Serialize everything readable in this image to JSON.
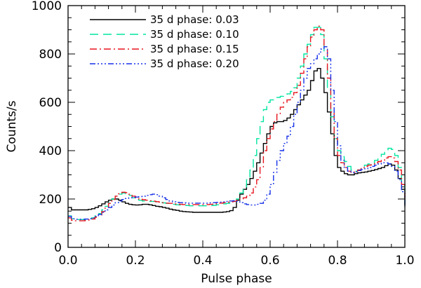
{
  "chart_data": {
    "type": "line",
    "title": "",
    "xlabel": "Pulse phase",
    "ylabel": "Counts/s",
    "xlim": [
      0.0,
      1.0
    ],
    "ylim": [
      0,
      1000
    ],
    "x_ticks": [
      "0.0",
      "0.2",
      "0.4",
      "0.6",
      "0.8",
      "1.0"
    ],
    "y_ticks": [
      "0",
      "200",
      "400",
      "600",
      "800",
      "1000"
    ],
    "legend_position": "top-left",
    "step": true,
    "series": [
      {
        "name": "35 d phase: 0.03",
        "color": "#000000",
        "dash": "solid",
        "x": [
          0.0,
          0.01,
          0.02,
          0.03,
          0.04,
          0.05,
          0.06,
          0.07,
          0.08,
          0.09,
          0.1,
          0.11,
          0.12,
          0.13,
          0.14,
          0.15,
          0.16,
          0.17,
          0.18,
          0.19,
          0.2,
          0.21,
          0.22,
          0.23,
          0.24,
          0.25,
          0.26,
          0.27,
          0.28,
          0.29,
          0.3,
          0.31,
          0.32,
          0.33,
          0.34,
          0.35,
          0.36,
          0.37,
          0.38,
          0.39,
          0.4,
          0.41,
          0.42,
          0.43,
          0.44,
          0.45,
          0.46,
          0.47,
          0.48,
          0.49,
          0.5,
          0.51,
          0.52,
          0.53,
          0.54,
          0.55,
          0.56,
          0.57,
          0.58,
          0.59,
          0.6,
          0.61,
          0.62,
          0.63,
          0.64,
          0.65,
          0.66,
          0.67,
          0.68,
          0.69,
          0.7,
          0.71,
          0.72,
          0.73,
          0.74,
          0.75,
          0.76,
          0.77,
          0.78,
          0.79,
          0.8,
          0.81,
          0.82,
          0.83,
          0.84,
          0.85,
          0.86,
          0.87,
          0.88,
          0.89,
          0.9,
          0.91,
          0.92,
          0.93,
          0.94,
          0.95,
          0.96,
          0.97,
          0.98,
          0.99,
          1.0
        ],
        "y": [
          165,
          155,
          155,
          155,
          155,
          155,
          157,
          160,
          165,
          172,
          180,
          188,
          195,
          200,
          200,
          195,
          188,
          182,
          178,
          176,
          175,
          176,
          178,
          178,
          176,
          173,
          170,
          168,
          165,
          162,
          158,
          155,
          153,
          150,
          148,
          147,
          146,
          145,
          145,
          145,
          145,
          145,
          145,
          145,
          145,
          145,
          146,
          148,
          152,
          165,
          195,
          220,
          240,
          260,
          285,
          315,
          350,
          390,
          430,
          470,
          500,
          515,
          520,
          520,
          525,
          535,
          550,
          570,
          590,
          610,
          630,
          650,
          690,
          730,
          740,
          700,
          640,
          560,
          470,
          380,
          330,
          315,
          305,
          300,
          300,
          305,
          308,
          310,
          312,
          315,
          318,
          322,
          326,
          330,
          338,
          345,
          340,
          320,
          285,
          240,
          170
        ]
      },
      {
        "name": "35 d phase: 0.10",
        "color": "#00e5a0",
        "dash": "12,7",
        "x": [
          0.0,
          0.01,
          0.02,
          0.03,
          0.04,
          0.05,
          0.06,
          0.07,
          0.08,
          0.09,
          0.1,
          0.11,
          0.12,
          0.13,
          0.14,
          0.15,
          0.16,
          0.17,
          0.18,
          0.19,
          0.2,
          0.21,
          0.22,
          0.23,
          0.24,
          0.25,
          0.26,
          0.27,
          0.28,
          0.29,
          0.3,
          0.31,
          0.32,
          0.33,
          0.34,
          0.35,
          0.36,
          0.37,
          0.38,
          0.39,
          0.4,
          0.41,
          0.42,
          0.43,
          0.44,
          0.45,
          0.46,
          0.47,
          0.48,
          0.49,
          0.5,
          0.51,
          0.52,
          0.53,
          0.54,
          0.55,
          0.56,
          0.57,
          0.58,
          0.59,
          0.6,
          0.61,
          0.62,
          0.63,
          0.64,
          0.65,
          0.66,
          0.67,
          0.68,
          0.69,
          0.7,
          0.71,
          0.72,
          0.73,
          0.74,
          0.75,
          0.76,
          0.77,
          0.78,
          0.79,
          0.8,
          0.81,
          0.82,
          0.83,
          0.84,
          0.85,
          0.86,
          0.87,
          0.88,
          0.89,
          0.9,
          0.91,
          0.92,
          0.93,
          0.94,
          0.95,
          0.96,
          0.97,
          0.98,
          0.99,
          1.0
        ],
        "y": [
          130,
          118,
          115,
          115,
          115,
          116,
          118,
          122,
          130,
          140,
          155,
          170,
          185,
          200,
          212,
          220,
          225,
          222,
          215,
          205,
          198,
          195,
          192,
          190,
          190,
          190,
          188,
          186,
          184,
          182,
          180,
          178,
          176,
          175,
          174,
          173,
          172,
          172,
          172,
          172,
          172,
          172,
          173,
          174,
          176,
          178,
          180,
          182,
          185,
          190,
          200,
          225,
          250,
          280,
          320,
          380,
          450,
          520,
          570,
          600,
          610,
          615,
          620,
          625,
          630,
          635,
          645,
          660,
          700,
          750,
          800,
          840,
          880,
          910,
          910,
          880,
          780,
          650,
          540,
          450,
          400,
          375,
          355,
          335,
          320,
          315,
          320,
          330,
          340,
          345,
          350,
          360,
          370,
          385,
          400,
          410,
          405,
          380,
          330,
          260,
          170
        ]
      },
      {
        "name": "35 d phase: 0.15",
        "color": "#e8141e",
        "dash": "10,4,2,4",
        "x": [
          0.0,
          0.01,
          0.02,
          0.03,
          0.04,
          0.05,
          0.06,
          0.07,
          0.08,
          0.09,
          0.1,
          0.11,
          0.12,
          0.13,
          0.14,
          0.15,
          0.16,
          0.17,
          0.18,
          0.19,
          0.2,
          0.21,
          0.22,
          0.23,
          0.24,
          0.25,
          0.26,
          0.27,
          0.28,
          0.29,
          0.3,
          0.31,
          0.32,
          0.33,
          0.34,
          0.35,
          0.36,
          0.37,
          0.38,
          0.39,
          0.4,
          0.41,
          0.42,
          0.43,
          0.44,
          0.45,
          0.46,
          0.47,
          0.48,
          0.49,
          0.5,
          0.51,
          0.52,
          0.53,
          0.54,
          0.55,
          0.56,
          0.57,
          0.58,
          0.59,
          0.6,
          0.61,
          0.62,
          0.63,
          0.64,
          0.65,
          0.66,
          0.67,
          0.68,
          0.69,
          0.7,
          0.71,
          0.72,
          0.73,
          0.74,
          0.75,
          0.76,
          0.77,
          0.78,
          0.79,
          0.8,
          0.81,
          0.82,
          0.83,
          0.84,
          0.85,
          0.86,
          0.87,
          0.88,
          0.89,
          0.9,
          0.91,
          0.92,
          0.93,
          0.94,
          0.95,
          0.96,
          0.97,
          0.98,
          0.99,
          1.0
        ],
        "y": [
          122,
          112,
          110,
          110,
          110,
          111,
          113,
          117,
          124,
          134,
          148,
          165,
          182,
          198,
          212,
          222,
          228,
          226,
          220,
          212,
          205,
          200,
          197,
          195,
          193,
          191,
          189,
          187,
          185,
          183,
          182,
          180,
          179,
          178,
          177,
          177,
          177,
          177,
          177,
          177,
          177,
          177,
          178,
          179,
          181,
          183,
          185,
          187,
          188,
          190,
          195,
          200,
          205,
          212,
          225,
          250,
          280,
          330,
          400,
          450,
          490,
          520,
          550,
          580,
          600,
          610,
          620,
          640,
          670,
          720,
          780,
          830,
          870,
          900,
          915,
          900,
          830,
          700,
          560,
          450,
          380,
          350,
          330,
          315,
          310,
          312,
          320,
          330,
          335,
          340,
          345,
          350,
          355,
          360,
          370,
          375,
          370,
          355,
          320,
          260,
          180
        ]
      },
      {
        "name": "35 d phase: 0.20",
        "color": "#1530e8",
        "dash": "8,3,2,3,2,3,2,3",
        "x": [
          0.0,
          0.01,
          0.02,
          0.03,
          0.04,
          0.05,
          0.06,
          0.07,
          0.08,
          0.09,
          0.1,
          0.11,
          0.12,
          0.13,
          0.14,
          0.15,
          0.16,
          0.17,
          0.18,
          0.19,
          0.2,
          0.21,
          0.22,
          0.23,
          0.24,
          0.25,
          0.26,
          0.27,
          0.28,
          0.29,
          0.3,
          0.31,
          0.32,
          0.33,
          0.34,
          0.35,
          0.36,
          0.37,
          0.38,
          0.39,
          0.4,
          0.41,
          0.42,
          0.43,
          0.44,
          0.45,
          0.46,
          0.47,
          0.48,
          0.49,
          0.5,
          0.51,
          0.52,
          0.53,
          0.54,
          0.55,
          0.56,
          0.57,
          0.58,
          0.59,
          0.6,
          0.61,
          0.62,
          0.63,
          0.64,
          0.65,
          0.66,
          0.67,
          0.68,
          0.69,
          0.7,
          0.71,
          0.72,
          0.73,
          0.74,
          0.75,
          0.76,
          0.77,
          0.78,
          0.79,
          0.8,
          0.81,
          0.82,
          0.83,
          0.84,
          0.85,
          0.86,
          0.87,
          0.88,
          0.89,
          0.9,
          0.91,
          0.92,
          0.93,
          0.94,
          0.95,
          0.96,
          0.97,
          0.98,
          0.99,
          1.0
        ],
        "y": [
          128,
          118,
          116,
          116,
          116,
          117,
          119,
          122,
          128,
          136,
          145,
          155,
          165,
          175,
          185,
          192,
          198,
          202,
          205,
          207,
          208,
          210,
          212,
          215,
          218,
          220,
          218,
          212,
          205,
          198,
          192,
          188,
          186,
          185,
          184,
          183,
          183,
          183,
          183,
          183,
          183,
          183,
          184,
          185,
          186,
          187,
          188,
          190,
          192,
          193,
          190,
          185,
          180,
          177,
          175,
          175,
          178,
          182,
          195,
          220,
          260,
          310,
          360,
          400,
          430,
          460,
          500,
          550,
          600,
          650,
          700,
          740,
          760,
          780,
          800,
          820,
          830,
          780,
          650,
          520,
          420,
          360,
          330,
          315,
          310,
          312,
          318,
          322,
          325,
          330,
          335,
          340,
          345,
          350,
          350,
          345,
          335,
          315,
          280,
          230,
          165
        ]
      }
    ]
  }
}
